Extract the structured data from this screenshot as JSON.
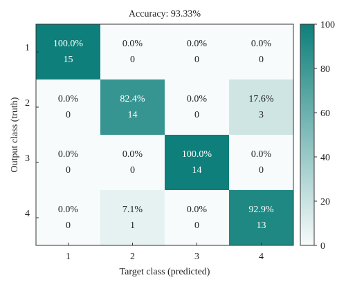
{
  "chart_data": {
    "type": "heatmap",
    "title": "Accuracy: 93.33%",
    "xlabel": "Target class (predicted)",
    "ylabel": "Output class (truth)",
    "x_categories": [
      "1",
      "2",
      "3",
      "4"
    ],
    "y_categories": [
      "1",
      "2",
      "3",
      "4"
    ],
    "percent_labels": [
      [
        "100.0%",
        "0.0%",
        "0.0%",
        "0.0%"
      ],
      [
        "0.0%",
        "82.4%",
        "0.0%",
        "17.6%"
      ],
      [
        "0.0%",
        "0.0%",
        "100.0%",
        "0.0%"
      ],
      [
        "0.0%",
        "7.1%",
        "0.0%",
        "92.9%"
      ]
    ],
    "percent_values": [
      [
        100.0,
        0.0,
        0.0,
        0.0
      ],
      [
        0.0,
        82.4,
        0.0,
        17.6
      ],
      [
        0.0,
        0.0,
        100.0,
        0.0
      ],
      [
        0.0,
        7.1,
        0.0,
        92.9
      ]
    ],
    "counts": [
      [
        15,
        0,
        0,
        0
      ],
      [
        0,
        14,
        0,
        3
      ],
      [
        0,
        0,
        14,
        0
      ],
      [
        0,
        1,
        0,
        13
      ]
    ],
    "colorbar": {
      "range": [
        0,
        100
      ],
      "ticks": [
        0,
        20,
        40,
        60,
        80,
        100
      ],
      "color_low": "#f7fbfb",
      "color_high": "#0e7f7a"
    },
    "grid": false
  }
}
